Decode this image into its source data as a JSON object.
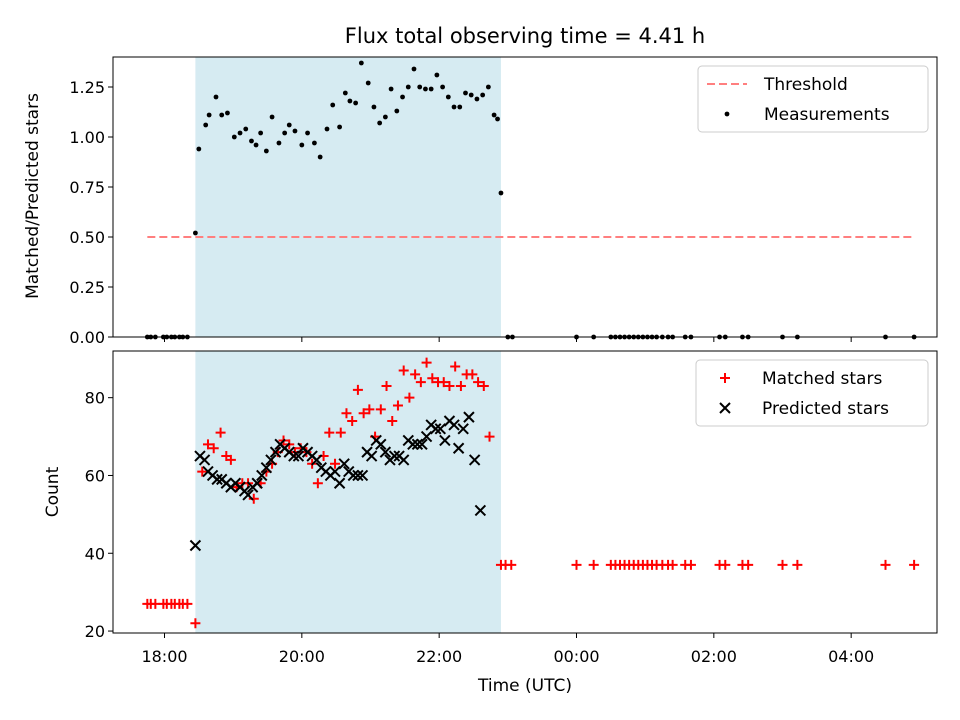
{
  "chart_data": [
    {
      "type": "scatter",
      "title": "Flux total observing time = 4.41 h",
      "xlabel": "",
      "ylabel": "Matched/Predicted stars",
      "xlim": [
        "17:15",
        "05:15"
      ],
      "ylim": [
        0,
        1.4
      ],
      "yticks": [
        "0.00",
        "0.25",
        "0.50",
        "0.75",
        "1.00",
        "1.25"
      ],
      "shaded_interval": [
        "18:27",
        "22:54"
      ],
      "threshold": {
        "name": "Threshold",
        "value": 0.5,
        "x_range": [
          "17:45",
          "04:55"
        ],
        "color": "#ff7f7f",
        "style": "dashed"
      },
      "legend": {
        "position": "top-right",
        "entries": [
          "Threshold",
          "Measurements"
        ]
      },
      "series": [
        {
          "name": "Measurements",
          "marker": "dot",
          "color": "#000000",
          "points": [
            [
              "17:45",
              0
            ],
            [
              "17:48",
              0
            ],
            [
              "17:52",
              0
            ],
            [
              "17:59",
              0
            ],
            [
              "18:02",
              0
            ],
            [
              "18:06",
              0
            ],
            [
              "18:09",
              0
            ],
            [
              "18:13",
              0
            ],
            [
              "18:16",
              0
            ],
            [
              "18:20",
              0
            ],
            [
              "18:27",
              0.52
            ],
            [
              "18:30",
              0.94
            ],
            [
              "18:36",
              1.06
            ],
            [
              "18:39",
              1.11
            ],
            [
              "18:45",
              1.2
            ],
            [
              "18:50",
              1.11
            ],
            [
              "18:55",
              1.12
            ],
            [
              "19:01",
              1.0
            ],
            [
              "19:06",
              1.02
            ],
            [
              "19:11",
              1.04
            ],
            [
              "19:16",
              0.98
            ],
            [
              "19:20",
              0.96
            ],
            [
              "19:24",
              1.02
            ],
            [
              "19:29",
              0.93
            ],
            [
              "19:34",
              1.1
            ],
            [
              "19:40",
              0.97
            ],
            [
              "19:45",
              1.02
            ],
            [
              "19:49",
              1.06
            ],
            [
              "19:54",
              1.03
            ],
            [
              "20:00",
              0.96
            ],
            [
              "20:05",
              1.02
            ],
            [
              "20:11",
              0.97
            ],
            [
              "20:16",
              0.9
            ],
            [
              "20:22",
              1.04
            ],
            [
              "20:27",
              1.16
            ],
            [
              "20:33",
              1.05
            ],
            [
              "20:38",
              1.22
            ],
            [
              "20:42",
              1.18
            ],
            [
              "20:47",
              1.17
            ],
            [
              "20:52",
              1.37
            ],
            [
              "20:58",
              1.27
            ],
            [
              "21:03",
              1.15
            ],
            [
              "21:08",
              1.07
            ],
            [
              "21:13",
              1.1
            ],
            [
              "21:18",
              1.24
            ],
            [
              "21:23",
              1.13
            ],
            [
              "21:28",
              1.2
            ],
            [
              "21:33",
              1.25
            ],
            [
              "21:38",
              1.34
            ],
            [
              "21:43",
              1.25
            ],
            [
              "21:48",
              1.24
            ],
            [
              "21:53",
              1.24
            ],
            [
              "21:58",
              1.31
            ],
            [
              "22:03",
              1.25
            ],
            [
              "22:08",
              1.2
            ],
            [
              "22:13",
              1.15
            ],
            [
              "22:18",
              1.15
            ],
            [
              "22:23",
              1.22
            ],
            [
              "22:28",
              1.21
            ],
            [
              "22:33",
              1.19
            ],
            [
              "22:38",
              1.21
            ],
            [
              "22:43",
              1.25
            ],
            [
              "22:48",
              1.11
            ],
            [
              "22:51",
              1.09
            ],
            [
              "22:54",
              0.72
            ],
            [
              "23:00",
              0
            ],
            [
              "23:04",
              0
            ],
            [
              "00:00",
              0
            ],
            [
              "00:15",
              0
            ],
            [
              "00:30",
              0
            ],
            [
              "00:34",
              0
            ],
            [
              "00:38",
              0
            ],
            [
              "00:42",
              0
            ],
            [
              "00:46",
              0
            ],
            [
              "00:50",
              0
            ],
            [
              "00:54",
              0
            ],
            [
              "00:58",
              0
            ],
            [
              "01:02",
              0
            ],
            [
              "01:06",
              0
            ],
            [
              "01:10",
              0
            ],
            [
              "01:15",
              0
            ],
            [
              "01:20",
              0
            ],
            [
              "01:24",
              0
            ],
            [
              "01:35",
              0
            ],
            [
              "01:40",
              0
            ],
            [
              "02:05",
              0
            ],
            [
              "02:10",
              0
            ],
            [
              "02:25",
              0
            ],
            [
              "02:30",
              0
            ],
            [
              "03:00",
              0
            ],
            [
              "03:13",
              0
            ],
            [
              "04:30",
              0
            ],
            [
              "04:55",
              0
            ]
          ]
        }
      ]
    },
    {
      "type": "scatter",
      "title": "",
      "xlabel": "Time (UTC)",
      "ylabel": "Count",
      "xlim": [
        "17:15",
        "05:15"
      ],
      "ylim": [
        19.5,
        92
      ],
      "yticks": [
        "20",
        "40",
        "60",
        "80"
      ],
      "xticks": [
        "18:00",
        "20:00",
        "22:00",
        "00:00",
        "02:00",
        "04:00"
      ],
      "shaded_interval": [
        "18:27",
        "22:54"
      ],
      "legend": {
        "position": "top-right",
        "entries": [
          "Matched stars",
          "Predicted stars"
        ]
      },
      "series": [
        {
          "name": "Matched stars",
          "marker": "plus",
          "color": "#ff0000",
          "points": [
            [
              "17:45",
              27
            ],
            [
              "17:48",
              27
            ],
            [
              "17:52",
              27
            ],
            [
              "17:59",
              27
            ],
            [
              "18:02",
              27
            ],
            [
              "18:06",
              27
            ],
            [
              "18:09",
              27
            ],
            [
              "18:13",
              27
            ],
            [
              "18:16",
              27
            ],
            [
              "18:20",
              27
            ],
            [
              "18:27",
              22
            ],
            [
              "18:33",
              61
            ],
            [
              "18:38",
              68
            ],
            [
              "18:43",
              67
            ],
            [
              "18:49",
              71
            ],
            [
              "18:54",
              65
            ],
            [
              "18:58",
              64
            ],
            [
              "19:03",
              57
            ],
            [
              "19:08",
              58
            ],
            [
              "19:13",
              58
            ],
            [
              "19:18",
              54
            ],
            [
              "19:24",
              58
            ],
            [
              "19:29",
              61
            ],
            [
              "19:34",
              63
            ],
            [
              "19:39",
              66
            ],
            [
              "19:44",
              69
            ],
            [
              "19:49",
              68
            ],
            [
              "19:54",
              66
            ],
            [
              "19:59",
              67
            ],
            [
              "20:04",
              66
            ],
            [
              "20:09",
              63
            ],
            [
              "20:14",
              58
            ],
            [
              "20:19",
              65
            ],
            [
              "20:24",
              71
            ],
            [
              "20:29",
              63
            ],
            [
              "20:34",
              71
            ],
            [
              "20:39",
              76
            ],
            [
              "20:44",
              74
            ],
            [
              "20:49",
              82
            ],
            [
              "20:54",
              76
            ],
            [
              "20:59",
              77
            ],
            [
              "21:04",
              70
            ],
            [
              "21:09",
              77
            ],
            [
              "21:14",
              83
            ],
            [
              "21:19",
              74
            ],
            [
              "21:24",
              78
            ],
            [
              "21:29",
              87
            ],
            [
              "21:34",
              80
            ],
            [
              "21:39",
              86
            ],
            [
              "21:44",
              84
            ],
            [
              "21:49",
              89
            ],
            [
              "21:54",
              85
            ],
            [
              "21:59",
              84
            ],
            [
              "22:04",
              84
            ],
            [
              "22:09",
              83
            ],
            [
              "22:14",
              88
            ],
            [
              "22:19",
              83
            ],
            [
              "22:24",
              86
            ],
            [
              "22:29",
              86
            ],
            [
              "22:34",
              84
            ],
            [
              "22:39",
              83
            ],
            [
              "22:44",
              70
            ],
            [
              "22:54",
              37
            ],
            [
              "22:58",
              37
            ],
            [
              "23:03",
              37
            ],
            [
              "00:00",
              37
            ],
            [
              "00:15",
              37
            ],
            [
              "00:30",
              37
            ],
            [
              "00:34",
              37
            ],
            [
              "00:38",
              37
            ],
            [
              "00:42",
              37
            ],
            [
              "00:46",
              37
            ],
            [
              "00:50",
              37
            ],
            [
              "00:54",
              37
            ],
            [
              "00:58",
              37
            ],
            [
              "01:02",
              37
            ],
            [
              "01:06",
              37
            ],
            [
              "01:10",
              37
            ],
            [
              "01:15",
              37
            ],
            [
              "01:20",
              37
            ],
            [
              "01:24",
              37
            ],
            [
              "01:35",
              37
            ],
            [
              "01:40",
              37
            ],
            [
              "02:05",
              37
            ],
            [
              "02:10",
              37
            ],
            [
              "02:25",
              37
            ],
            [
              "02:30",
              37
            ],
            [
              "03:00",
              37
            ],
            [
              "03:13",
              37
            ],
            [
              "04:30",
              37
            ],
            [
              "04:55",
              37
            ]
          ]
        },
        {
          "name": "Predicted stars",
          "marker": "x",
          "color": "#000000",
          "points": [
            [
              "18:27",
              42
            ],
            [
              "18:31",
              65
            ],
            [
              "18:35",
              64
            ],
            [
              "18:38",
              61
            ],
            [
              "18:42",
              60
            ],
            [
              "18:46",
              59
            ],
            [
              "18:50",
              59
            ],
            [
              "18:54",
              58
            ],
            [
              "18:58",
              57
            ],
            [
              "19:02",
              58
            ],
            [
              "19:06",
              57
            ],
            [
              "19:10",
              56
            ],
            [
              "19:13",
              55
            ],
            [
              "19:17",
              57
            ],
            [
              "19:21",
              58
            ],
            [
              "19:25",
              60
            ],
            [
              "19:29",
              62
            ],
            [
              "19:33",
              64
            ],
            [
              "19:37",
              66
            ],
            [
              "19:41",
              68
            ],
            [
              "19:45",
              67
            ],
            [
              "19:49",
              66
            ],
            [
              "19:53",
              65
            ],
            [
              "19:57",
              65
            ],
            [
              "20:01",
              67
            ],
            [
              "20:05",
              66
            ],
            [
              "20:09",
              65
            ],
            [
              "20:13",
              64
            ],
            [
              "20:17",
              62
            ],
            [
              "20:21",
              61
            ],
            [
              "20:25",
              60
            ],
            [
              "20:29",
              61
            ],
            [
              "20:33",
              58
            ],
            [
              "20:37",
              63
            ],
            [
              "20:41",
              61
            ],
            [
              "20:45",
              60
            ],
            [
              "20:49",
              60
            ],
            [
              "20:53",
              60
            ],
            [
              "20:57",
              66
            ],
            [
              "21:01",
              65
            ],
            [
              "21:05",
              69
            ],
            [
              "21:09",
              68
            ],
            [
              "21:13",
              66
            ],
            [
              "21:17",
              64
            ],
            [
              "21:21",
              65
            ],
            [
              "21:25",
              65
            ],
            [
              "21:29",
              64
            ],
            [
              "21:33",
              69
            ],
            [
              "21:37",
              68
            ],
            [
              "21:41",
              68
            ],
            [
              "21:45",
              68
            ],
            [
              "21:49",
              70
            ],
            [
              "21:53",
              73
            ],
            [
              "21:57",
              72
            ],
            [
              "22:01",
              72
            ],
            [
              "22:05",
              69
            ],
            [
              "22:09",
              74
            ],
            [
              "22:13",
              73
            ],
            [
              "22:17",
              67
            ],
            [
              "22:21",
              72
            ],
            [
              "22:26",
              75
            ],
            [
              "22:31",
              64
            ],
            [
              "22:36",
              51
            ]
          ]
        }
      ]
    }
  ]
}
